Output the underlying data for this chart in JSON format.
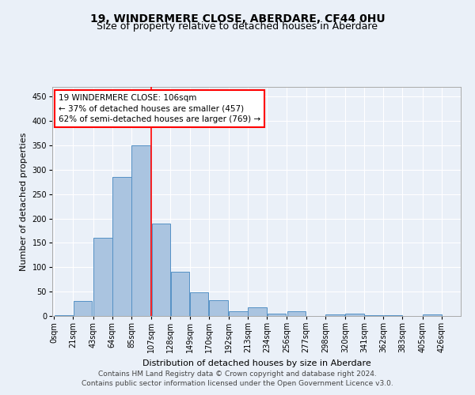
{
  "title": "19, WINDERMERE CLOSE, ABERDARE, CF44 0HU",
  "subtitle": "Size of property relative to detached houses in Aberdare",
  "xlabel": "Distribution of detached houses by size in Aberdare",
  "ylabel": "Number of detached properties",
  "footer_line1": "Contains HM Land Registry data © Crown copyright and database right 2024.",
  "footer_line2": "Contains public sector information licensed under the Open Government Licence v3.0.",
  "bin_labels": [
    "0sqm",
    "21sqm",
    "43sqm",
    "64sqm",
    "85sqm",
    "107sqm",
    "128sqm",
    "149sqm",
    "170sqm",
    "192sqm",
    "213sqm",
    "234sqm",
    "256sqm",
    "277sqm",
    "298sqm",
    "320sqm",
    "341sqm",
    "362sqm",
    "383sqm",
    "405sqm",
    "426sqm"
  ],
  "bar_values": [
    2,
    30,
    160,
    285,
    350,
    190,
    90,
    48,
    32,
    10,
    18,
    5,
    10,
    0,
    4,
    5,
    1,
    1,
    0,
    3
  ],
  "bar_color": "#aac4e0",
  "bar_edge_color": "#5591c5",
  "annotation_text": "19 WINDERMERE CLOSE: 106sqm\n← 37% of detached houses are smaller (457)\n62% of semi-detached houses are larger (769) →",
  "annotation_box_color": "white",
  "annotation_box_edge_color": "red",
  "vline_color": "red",
  "vline_x": 107,
  "ylim": [
    0,
    470
  ],
  "yticks": [
    0,
    50,
    100,
    150,
    200,
    250,
    300,
    350,
    400,
    450
  ],
  "background_color": "#eaf0f8",
  "grid_color": "white",
  "title_fontsize": 10,
  "subtitle_fontsize": 9,
  "axis_label_fontsize": 8,
  "tick_fontsize": 7,
  "annotation_fontsize": 7.5,
  "footer_fontsize": 6.5
}
